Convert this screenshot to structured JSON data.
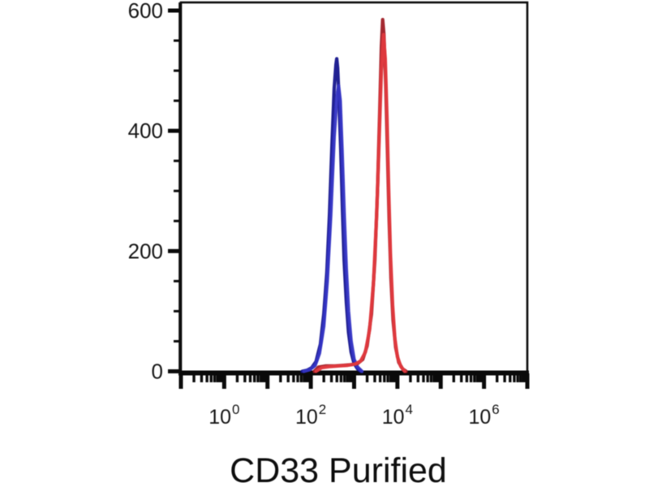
{
  "figure": {
    "background_color": "#ffffff",
    "frame_color": "#0a0a0a"
  },
  "chart_data": {
    "type": "line",
    "chart_kind": "flow-cytometry-histogram-overlay",
    "title": "",
    "xlabel": "CD33 Purified",
    "ylabel": "",
    "x_scale": "log10",
    "x_decade_range": [
      -1,
      7
    ],
    "x_labeled_exponents": [
      0,
      2,
      4,
      6
    ],
    "x_tick_label_base": "10",
    "ylim": [
      0,
      600
    ],
    "y_major_ticks": [
      0,
      200,
      400,
      600
    ],
    "y_minor_interval": 50,
    "grid": false,
    "legend": false,
    "series": [
      {
        "name": "blue-histogram",
        "color": "#15158c",
        "peak_log10_x": 2.6,
        "peak_count": 520,
        "points": [
          [
            1.8,
            0
          ],
          [
            1.92,
            2
          ],
          [
            2.02,
            6
          ],
          [
            2.12,
            16
          ],
          [
            2.22,
            45
          ],
          [
            2.3,
            95
          ],
          [
            2.37,
            165
          ],
          [
            2.43,
            260
          ],
          [
            2.49,
            380
          ],
          [
            2.54,
            470
          ],
          [
            2.58,
            510
          ],
          [
            2.6,
            520
          ],
          [
            2.62,
            505
          ],
          [
            2.65,
            455
          ],
          [
            2.69,
            370
          ],
          [
            2.73,
            270
          ],
          [
            2.77,
            185
          ],
          [
            2.82,
            115
          ],
          [
            2.87,
            65
          ],
          [
            2.93,
            32
          ],
          [
            3.0,
            13
          ],
          [
            3.08,
            4
          ],
          [
            3.16,
            0
          ]
        ]
      },
      {
        "name": "blue-histogram-overlay",
        "color": "#3434c4",
        "peak_log10_x": 2.64,
        "peak_count": 475,
        "points": [
          [
            1.84,
            0
          ],
          [
            1.98,
            3
          ],
          [
            2.1,
            10
          ],
          [
            2.2,
            30
          ],
          [
            2.3,
            75
          ],
          [
            2.38,
            150
          ],
          [
            2.46,
            260
          ],
          [
            2.54,
            390
          ],
          [
            2.6,
            455
          ],
          [
            2.64,
            475
          ],
          [
            2.68,
            450
          ],
          [
            2.72,
            370
          ],
          [
            2.77,
            265
          ],
          [
            2.82,
            170
          ],
          [
            2.87,
            100
          ],
          [
            2.93,
            50
          ],
          [
            3.0,
            20
          ],
          [
            3.08,
            7
          ],
          [
            3.18,
            0
          ]
        ]
      },
      {
        "name": "red-histogram",
        "color": "#9e1b24",
        "peak_log10_x": 3.66,
        "peak_count": 585,
        "points": [
          [
            2.08,
            0
          ],
          [
            2.18,
            7
          ],
          [
            2.35,
            9
          ],
          [
            2.55,
            9
          ],
          [
            2.75,
            10
          ],
          [
            2.92,
            11
          ],
          [
            3.08,
            13
          ],
          [
            3.2,
            20
          ],
          [
            3.3,
            42
          ],
          [
            3.4,
            95
          ],
          [
            3.48,
            185
          ],
          [
            3.54,
            300
          ],
          [
            3.59,
            430
          ],
          [
            3.63,
            540
          ],
          [
            3.66,
            585
          ],
          [
            3.69,
            560
          ],
          [
            3.73,
            475
          ],
          [
            3.77,
            365
          ],
          [
            3.81,
            250
          ],
          [
            3.85,
            155
          ],
          [
            3.9,
            85
          ],
          [
            3.96,
            40
          ],
          [
            4.03,
            15
          ],
          [
            4.12,
            4
          ],
          [
            4.2,
            0
          ]
        ]
      },
      {
        "name": "red-histogram-overlay",
        "color": "#e23a3f",
        "peak_log10_x": 3.68,
        "peak_count": 560,
        "points": [
          [
            2.12,
            0
          ],
          [
            2.25,
            6
          ],
          [
            2.45,
            8
          ],
          [
            2.65,
            9
          ],
          [
            2.85,
            10
          ],
          [
            3.02,
            12
          ],
          [
            3.15,
            17
          ],
          [
            3.26,
            32
          ],
          [
            3.36,
            70
          ],
          [
            3.45,
            150
          ],
          [
            3.52,
            260
          ],
          [
            3.58,
            390
          ],
          [
            3.63,
            500
          ],
          [
            3.68,
            560
          ],
          [
            3.72,
            520
          ],
          [
            3.76,
            420
          ],
          [
            3.8,
            300
          ],
          [
            3.84,
            195
          ],
          [
            3.89,
            110
          ],
          [
            3.94,
            55
          ],
          [
            4.0,
            24
          ],
          [
            4.08,
            8
          ],
          [
            4.17,
            0
          ]
        ]
      }
    ]
  }
}
